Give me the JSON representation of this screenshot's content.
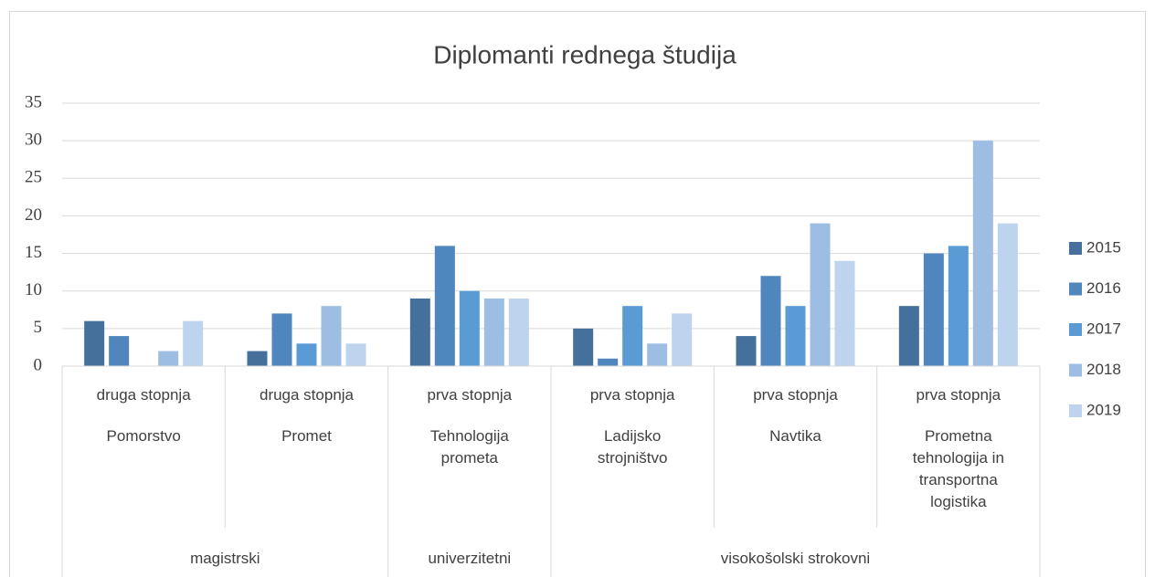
{
  "chart_data": {
    "type": "bar",
    "title": "Diplomanti rednega študija",
    "categories": [
      "Pomorstvo",
      "Promet",
      "Tehnologija prometa",
      "Ladijsko strojništvo",
      "Navtika",
      "Prometna tehnologija in transportna logistika"
    ],
    "category_level2": [
      "druga stopnja",
      "druga stopnja",
      "prva stopnja",
      "prva stopnja",
      "prva stopnja",
      "prva stopnja"
    ],
    "category_level3": [
      "magistrski",
      "magistrski",
      "univerzitetni",
      "visokošolski strokovni",
      "visokošolski strokovni",
      "visokošolski strokovni"
    ],
    "series": [
      {
        "name": "2015",
        "color": "#44709b",
        "values": [
          6,
          2,
          9,
          5,
          4,
          8
        ]
      },
      {
        "name": "2016",
        "color": "#4f86bd",
        "values": [
          4,
          7,
          16,
          1,
          12,
          15
        ]
      },
      {
        "name": "2017",
        "color": "#5b9bd5",
        "values": [
          null,
          3,
          10,
          8,
          8,
          16
        ]
      },
      {
        "name": "2018",
        "color": "#9dbde3",
        "values": [
          2,
          8,
          9,
          3,
          19,
          30
        ]
      },
      {
        "name": "2019",
        "color": "#bdd3ee",
        "values": [
          6,
          3,
          9,
          7,
          14,
          19
        ]
      }
    ],
    "ylim": [
      0,
      35
    ],
    "yticks": [
      0,
      5,
      10,
      15,
      20,
      25,
      30,
      35
    ],
    "grid": true,
    "legend": "right"
  }
}
